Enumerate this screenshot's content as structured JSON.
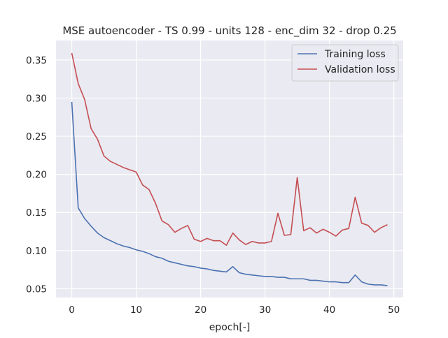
{
  "chart_data": {
    "type": "line",
    "title": "MSE autoencoder - TS 0.99 - units 128 - enc_dim 32 - drop 0.25",
    "xlabel": "epoch[-]",
    "ylabel": "",
    "xlim": [
      -2.45,
      51.45
    ],
    "ylim": [
      0.0385,
      0.3755
    ],
    "xticks": [
      0,
      10,
      20,
      30,
      40,
      50
    ],
    "xtick_labels": [
      "0",
      "10",
      "20",
      "30",
      "40",
      "50"
    ],
    "yticks": [
      0.05,
      0.1,
      0.15,
      0.2,
      0.25,
      0.3,
      0.35
    ],
    "ytick_labels": [
      "0.05",
      "0.10",
      "0.15",
      "0.20",
      "0.25",
      "0.30",
      "0.35"
    ],
    "grid": true,
    "legend_position": "top-right",
    "x": [
      0,
      1,
      2,
      3,
      4,
      5,
      6,
      7,
      8,
      9,
      10,
      11,
      12,
      13,
      14,
      15,
      16,
      17,
      18,
      19,
      20,
      21,
      22,
      23,
      24,
      25,
      26,
      27,
      28,
      29,
      30,
      31,
      32,
      33,
      34,
      35,
      36,
      37,
      38,
      39,
      40,
      41,
      42,
      43,
      44,
      45,
      46,
      47,
      48,
      49
    ],
    "series": [
      {
        "name": "Training loss",
        "color": "#4c72b0",
        "values": [
          0.295,
          0.156,
          0.142,
          0.132,
          0.123,
          0.117,
          0.113,
          0.109,
          0.106,
          0.104,
          0.101,
          0.099,
          0.096,
          0.092,
          0.09,
          0.086,
          0.084,
          0.082,
          0.08,
          0.079,
          0.077,
          0.076,
          0.074,
          0.073,
          0.072,
          0.079,
          0.071,
          0.069,
          0.068,
          0.067,
          0.066,
          0.066,
          0.065,
          0.065,
          0.063,
          0.063,
          0.063,
          0.061,
          0.061,
          0.06,
          0.059,
          0.059,
          0.058,
          0.058,
          0.068,
          0.059,
          0.056,
          0.055,
          0.055,
          0.054
        ]
      },
      {
        "name": "Validation loss",
        "color": "#c44e52",
        "values": [
          0.359,
          0.319,
          0.298,
          0.26,
          0.246,
          0.224,
          0.217,
          0.213,
          0.209,
          0.206,
          0.203,
          0.186,
          0.18,
          0.162,
          0.139,
          0.134,
          0.124,
          0.129,
          0.133,
          0.115,
          0.112,
          0.116,
          0.113,
          0.113,
          0.107,
          0.123,
          0.114,
          0.108,
          0.112,
          0.11,
          0.11,
          0.112,
          0.149,
          0.12,
          0.121,
          0.196,
          0.126,
          0.13,
          0.123,
          0.128,
          0.124,
          0.119,
          0.127,
          0.129,
          0.17,
          0.136,
          0.133,
          0.124,
          0.13,
          0.134
        ]
      }
    ]
  }
}
